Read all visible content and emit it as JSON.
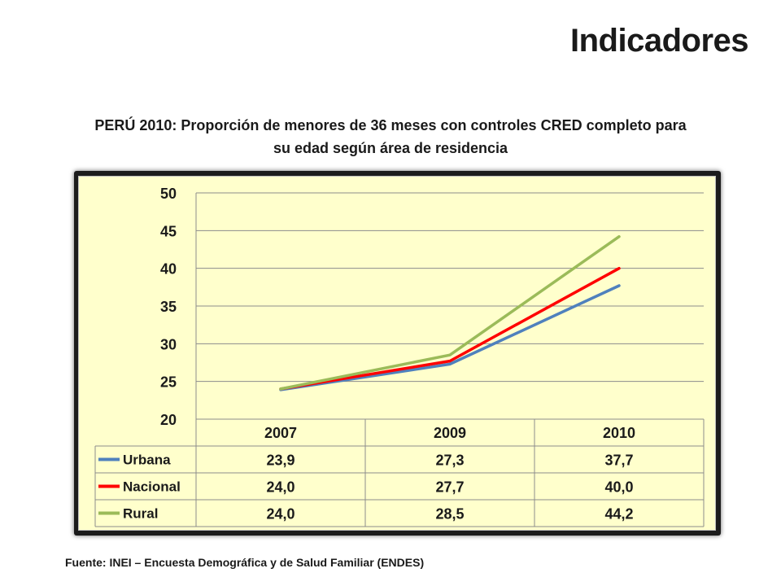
{
  "page_heading": "Indicadores",
  "source_note": "Fuente: INEI – Encuesta Demográfica y de Salud Familiar (ENDES)",
  "chart_data": {
    "type": "line",
    "title_line1": "PERÚ 2010: Proporción de menores de 36 meses con controles CRED completo para",
    "title_line2": "su edad según área de residencia",
    "categories": [
      "2007",
      "2009",
      "2010"
    ],
    "ylim": [
      20,
      50
    ],
    "yticks": [
      "20",
      "25",
      "30",
      "35",
      "40",
      "45",
      "50"
    ],
    "grid": true,
    "legend": "data-table",
    "series": [
      {
        "name": "Urbana",
        "values": [
          23.9,
          27.3,
          37.7
        ],
        "labels": [
          "23,9",
          "27,3",
          "37,7"
        ],
        "color": "#4f81bd"
      },
      {
        "name": "Nacional",
        "values": [
          24.0,
          27.7,
          40.0
        ],
        "labels": [
          "24,0",
          "27,7",
          "40,0"
        ],
        "color": "#ff0000"
      },
      {
        "name": "Rural",
        "values": [
          24.0,
          28.5,
          44.2
        ],
        "labels": [
          "24,0",
          "28,5",
          "44,2"
        ],
        "color": "#9bbb59"
      }
    ]
  }
}
